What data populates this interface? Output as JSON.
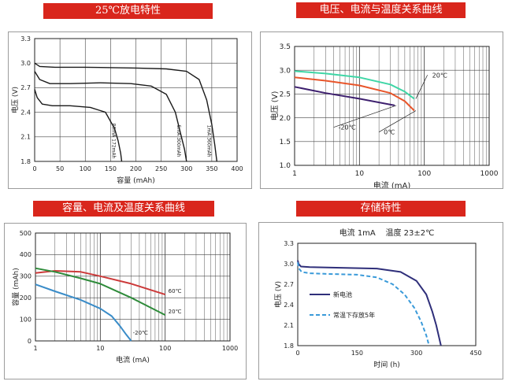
{
  "colors": {
    "banner_bg": "#d9261c",
    "banner_text": "#ffffff"
  },
  "chart_data": [
    {
      "id": "c1",
      "banner": "25℃放电特性",
      "type": "line",
      "xlabel": "容量 (mAh)",
      "ylabel": "电压 (V)",
      "x_ticks": [
        "0",
        "50",
        "100",
        "150",
        "200",
        "250",
        "300",
        "350",
        "400"
      ],
      "y_ticks": [
        "1.8",
        "2.1",
        "2.4",
        "2.7",
        "3.0",
        "3.3"
      ],
      "xlim": [
        0,
        400
      ],
      "ylim": [
        1.8,
        3.3
      ],
      "grid": true,
      "series": [
        {
          "name": "80mA 172mAh",
          "color": "#1a1a1a",
          "x": [
            0,
            5,
            15,
            35,
            70,
            110,
            140,
            158,
            165,
            170,
            172
          ],
          "y": [
            2.68,
            2.58,
            2.5,
            2.48,
            2.48,
            2.46,
            2.4,
            2.2,
            2.05,
            1.9,
            1.8
          ]
        },
        {
          "name": "5mA 300mAh",
          "color": "#1a1a1a",
          "x": [
            0,
            10,
            30,
            70,
            130,
            190,
            230,
            260,
            278,
            288,
            296,
            300
          ],
          "y": [
            2.9,
            2.8,
            2.75,
            2.75,
            2.76,
            2.75,
            2.72,
            2.62,
            2.4,
            2.15,
            1.95,
            1.8
          ]
        },
        {
          "name": "1mA 360mAh",
          "color": "#1a1a1a",
          "x": [
            0,
            10,
            40,
            100,
            200,
            260,
            300,
            325,
            340,
            350,
            356,
            360
          ],
          "y": [
            3.0,
            2.96,
            2.95,
            2.95,
            2.94,
            2.93,
            2.9,
            2.8,
            2.55,
            2.25,
            2.0,
            1.8
          ]
        }
      ]
    },
    {
      "id": "c2",
      "banner": "电压、电流与温度关系曲线",
      "type": "line",
      "x_scale": "log",
      "xlabel": "电流 (mA)",
      "ylabel": "电压 (V)",
      "x_ticks": [
        "1",
        "10",
        "100",
        "1000"
      ],
      "y_ticks": [
        "1.0",
        "1.5",
        "2.0",
        "2.5",
        "3.0",
        "3.5"
      ],
      "xlim": [
        1,
        1000
      ],
      "ylim": [
        1.0,
        3.5
      ],
      "grid": true,
      "series": [
        {
          "name": "20℃",
          "color": "#3fd6a6",
          "x": [
            1,
            3,
            10,
            30,
            50,
            70
          ],
          "y": [
            2.98,
            2.93,
            2.85,
            2.7,
            2.55,
            2.4
          ]
        },
        {
          "name": "0℃",
          "color": "#e8552a",
          "x": [
            1,
            3,
            10,
            30,
            50,
            70
          ],
          "y": [
            2.85,
            2.78,
            2.68,
            2.52,
            2.35,
            2.15
          ]
        },
        {
          "name": "-20℃",
          "color": "#3d1f6e",
          "x": [
            1,
            3,
            10,
            35
          ],
          "y": [
            2.65,
            2.52,
            2.4,
            2.26
          ]
        }
      ]
    },
    {
      "id": "c3",
      "banner": "容量、电流及温度关系曲线",
      "type": "line",
      "x_scale": "log",
      "xlabel": "电流 (mA)",
      "ylabel": "容量 (mAh)",
      "x_ticks": [
        "1",
        "10",
        "100",
        "1000"
      ],
      "y_ticks": [
        "0",
        "100",
        "200",
        "300",
        "400",
        "500"
      ],
      "xlim": [
        1,
        1000
      ],
      "ylim": [
        0,
        500
      ],
      "grid": true,
      "series": [
        {
          "name": "60℃",
          "color": "#cc3a3a",
          "x": [
            1,
            2,
            5,
            10,
            30,
            100
          ],
          "y": [
            315,
            325,
            320,
            300,
            265,
            215
          ]
        },
        {
          "name": "20℃",
          "color": "#2e8b3a",
          "x": [
            1,
            2,
            5,
            10,
            30,
            100
          ],
          "y": [
            337,
            320,
            290,
            265,
            200,
            120
          ]
        },
        {
          "name": "-20℃",
          "color": "#3a8cc8",
          "x": [
            1,
            2,
            5,
            10,
            15,
            20,
            25,
            30
          ],
          "y": [
            262,
            230,
            190,
            150,
            115,
            70,
            30,
            0
          ]
        }
      ]
    },
    {
      "id": "c4",
      "banner": "存储特性",
      "type": "line",
      "subtitle": "电流 1mA    温度 23±2℃",
      "xlabel": "时间 (h)",
      "ylabel": "电压 (V)",
      "x_ticks": [
        "0",
        "150",
        "300",
        "450"
      ],
      "y_ticks": [
        "1.8",
        "2.1",
        "2.4",
        "2.7",
        "3.0",
        "3.3"
      ],
      "xlim": [
        0,
        450
      ],
      "ylim": [
        1.8,
        3.3
      ],
      "grid": false,
      "series": [
        {
          "name": "新电池",
          "color": "#2f2f7a",
          "dash": false,
          "x": [
            0,
            2,
            8,
            30,
            120,
            200,
            260,
            300,
            325,
            340,
            350,
            358,
            362
          ],
          "y": [
            3.05,
            3.0,
            2.96,
            2.95,
            2.94,
            2.93,
            2.88,
            2.75,
            2.55,
            2.3,
            2.1,
            1.9,
            1.8
          ]
        },
        {
          "name": "常温下存放5年",
          "color": "#3a9ad9",
          "dash": true,
          "x": [
            0,
            3,
            10,
            30,
            80,
            150,
            200,
            240,
            270,
            295,
            312,
            325,
            332
          ],
          "y": [
            3.02,
            2.93,
            2.88,
            2.86,
            2.85,
            2.84,
            2.8,
            2.7,
            2.55,
            2.35,
            2.15,
            1.95,
            1.8
          ]
        }
      ]
    }
  ]
}
